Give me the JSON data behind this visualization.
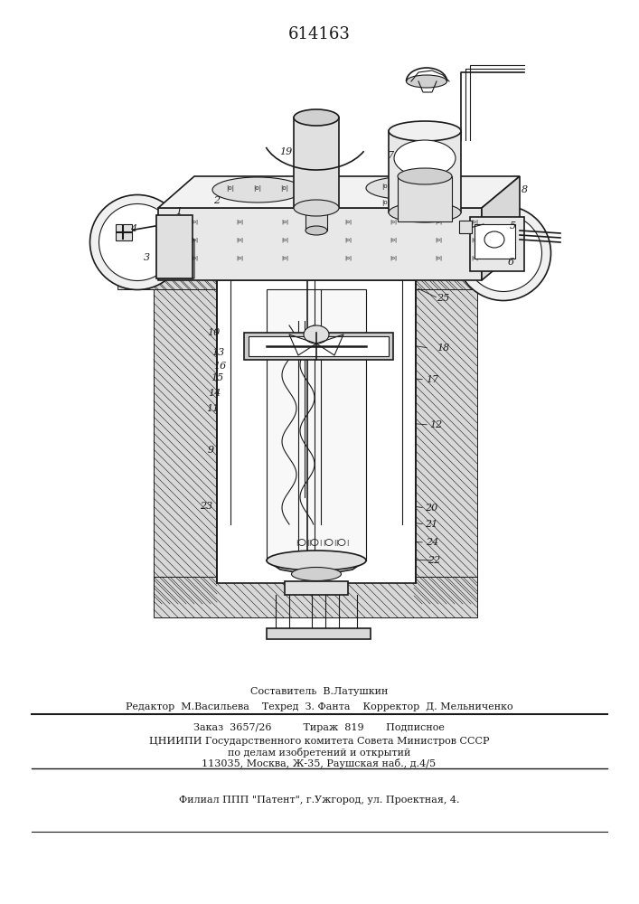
{
  "title_number": "614163",
  "bg_color": "#ffffff",
  "line_color": "#1a1a1a",
  "fig_width": 7.07,
  "fig_height": 10.0,
  "dpi": 100,
  "footer": {
    "line1": "Составитель  В.Латушкин",
    "line2": "Редактор  М.Васильева    Техред  З. Фанта    Корректор  Д. Мельниченко",
    "line3": "Заказ  3657/26          Тираж  819       Подписное",
    "line4": "ЦНИИПИ Государственного комитета Совета Министров СССР",
    "line5": "по делам изобретений и открытий",
    "line6": "113035, Москва, Ж-35, Раушская наб., д.4/5",
    "line7": "Филиал ППП \"Патент\", г.Ужгород, ул. Проектная, 4."
  }
}
